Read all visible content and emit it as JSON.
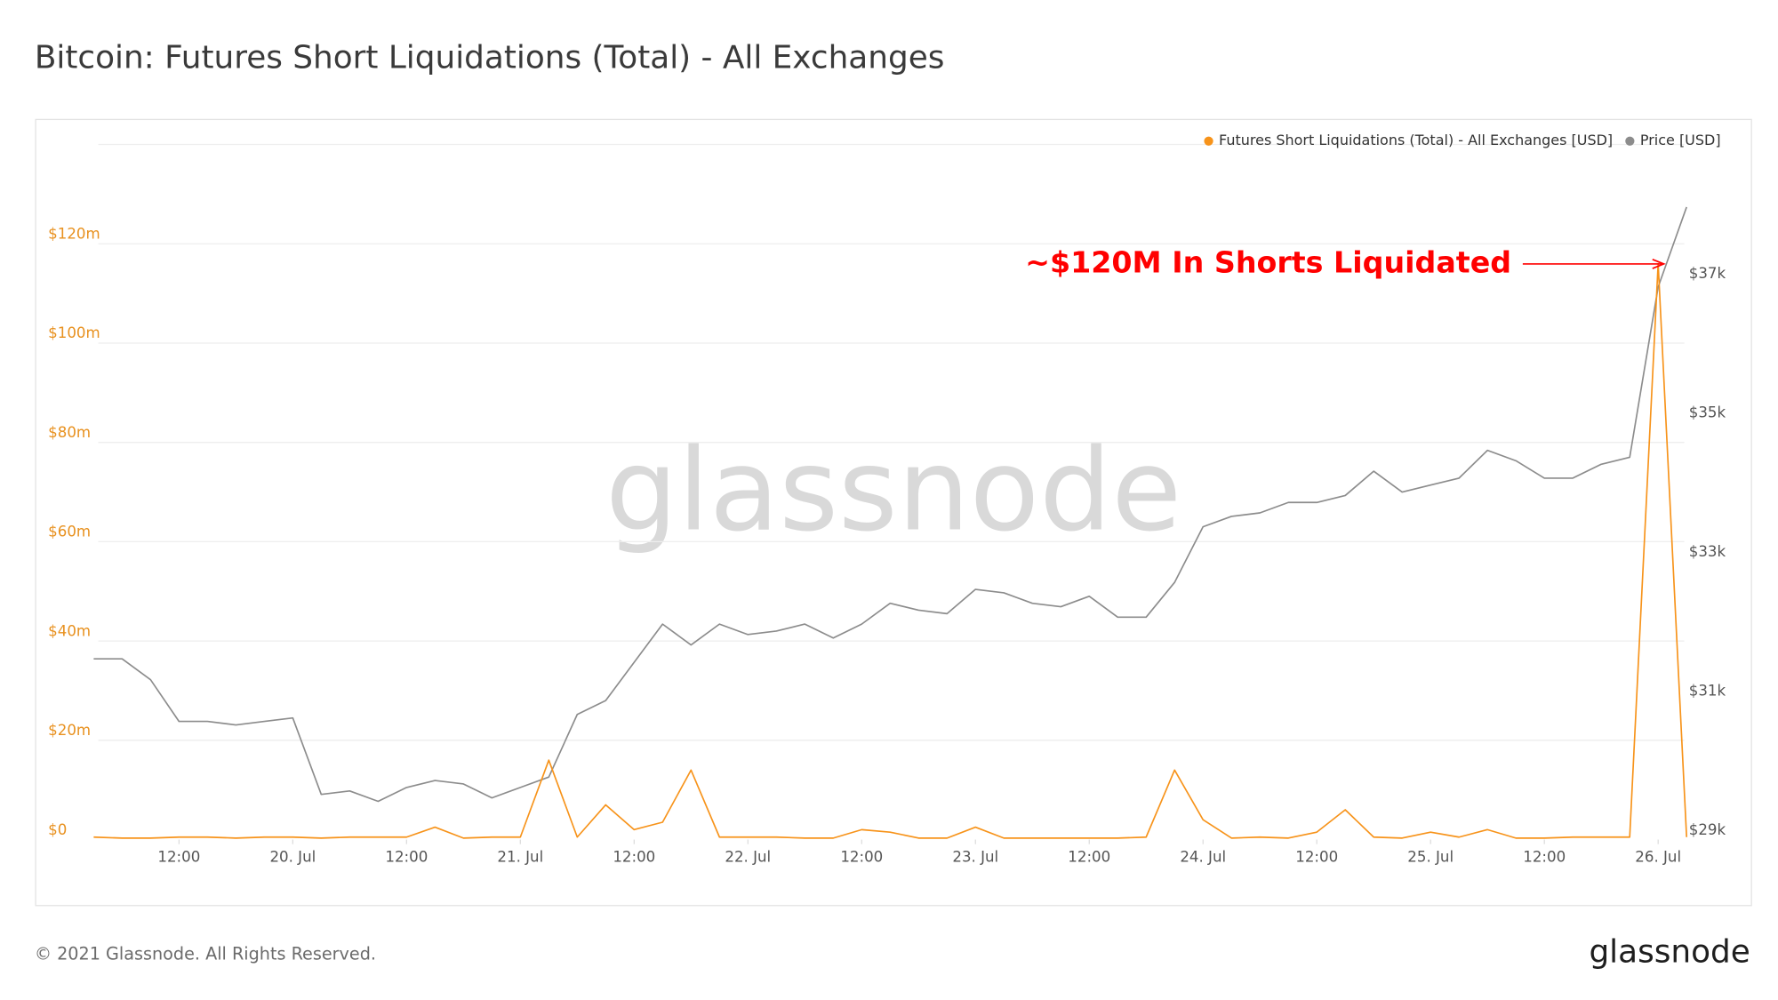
{
  "chart_data": {
    "type": "line",
    "title": "Bitcoin: Futures Short Liquidations (Total) - All Exchanges",
    "watermark": "glassnode",
    "annotation": "~$120M In Shorts Liquidated",
    "annotation_color": "#ff0000",
    "x": [
      "19 Jul 03:00",
      "19 Jul 06:00",
      "19 Jul 09:00",
      "19 Jul 12:00",
      "19 Jul 15:00",
      "19 Jul 18:00",
      "19 Jul 21:00",
      "20 Jul 00:00",
      "20 Jul 03:00",
      "20 Jul 06:00",
      "20 Jul 09:00",
      "20 Jul 12:00",
      "20 Jul 15:00",
      "20 Jul 18:00",
      "20 Jul 21:00",
      "21 Jul 00:00",
      "21 Jul 03:00",
      "21 Jul 06:00",
      "21 Jul 09:00",
      "21 Jul 12:00",
      "21 Jul 15:00",
      "21 Jul 18:00",
      "21 Jul 21:00",
      "22 Jul 00:00",
      "22 Jul 03:00",
      "22 Jul 06:00",
      "22 Jul 09:00",
      "22 Jul 12:00",
      "22 Jul 15:00",
      "22 Jul 18:00",
      "22 Jul 21:00",
      "23 Jul 00:00",
      "23 Jul 03:00",
      "23 Jul 06:00",
      "23 Jul 09:00",
      "23 Jul 12:00",
      "23 Jul 15:00",
      "23 Jul 18:00",
      "23 Jul 21:00",
      "24 Jul 00:00",
      "24 Jul 03:00",
      "24 Jul 06:00",
      "24 Jul 09:00",
      "24 Jul 12:00",
      "24 Jul 15:00",
      "24 Jul 18:00",
      "24 Jul 21:00",
      "25 Jul 00:00",
      "25 Jul 03:00",
      "25 Jul 06:00",
      "25 Jul 09:00",
      "25 Jul 12:00",
      "25 Jul 15:00",
      "25 Jul 18:00",
      "25 Jul 21:00",
      "26 Jul 00:00",
      "26 Jul 03:00"
    ],
    "series": [
      {
        "name": "Futures Short Liquidations (Total) - All Exchanges [USD]",
        "color": "#f7931a",
        "axis": "y",
        "values": [
          0.5,
          0.3,
          0.3,
          0.5,
          0.5,
          0.3,
          0.5,
          0.5,
          0.3,
          0.5,
          0.5,
          0.5,
          2.5,
          0.3,
          0.5,
          0.5,
          16,
          0.5,
          7,
          2,
          3.5,
          14,
          0.5,
          0.5,
          0.5,
          0.3,
          0.3,
          2,
          1.5,
          0.3,
          0.3,
          2.5,
          0.3,
          0.3,
          0.3,
          0.3,
          0.3,
          0.5,
          14,
          4,
          0.3,
          0.5,
          0.3,
          1.5,
          6,
          0.5,
          0.3,
          1.5,
          0.5,
          2,
          0.3,
          0.3,
          0.5,
          0.5,
          0.5,
          116,
          0.5
        ]
      },
      {
        "name": "Price [USD]",
        "color": "#8c8c8c",
        "axis": "y2",
        "values": [
          31.6,
          31.6,
          31.3,
          30.7,
          30.7,
          30.65,
          30.7,
          30.75,
          29.65,
          29.7,
          29.55,
          29.75,
          29.85,
          29.8,
          29.6,
          29.75,
          29.9,
          30.8,
          31.0,
          31.55,
          32.1,
          31.8,
          32.1,
          31.95,
          32.0,
          32.1,
          31.9,
          32.1,
          32.4,
          32.3,
          32.25,
          32.6,
          32.55,
          32.4,
          32.35,
          32.5,
          32.2,
          32.2,
          32.7,
          33.5,
          33.65,
          33.7,
          33.85,
          33.85,
          33.95,
          34.3,
          34.0,
          34.1,
          34.2,
          34.6,
          34.45,
          34.2,
          34.2,
          34.4,
          34.5,
          36.95,
          38.1
        ]
      }
    ],
    "xlim": [
      "19 Jul 03:00",
      "26 Jul 03:00"
    ],
    "xticks": [
      {
        "value": "19 Jul 12:00",
        "label": "12:00"
      },
      {
        "value": "20 Jul 00:00",
        "label": "20. Jul"
      },
      {
        "value": "20 Jul 12:00",
        "label": "12:00"
      },
      {
        "value": "21 Jul 00:00",
        "label": "21. Jul"
      },
      {
        "value": "21 Jul 12:00",
        "label": "12:00"
      },
      {
        "value": "22 Jul 00:00",
        "label": "22. Jul"
      },
      {
        "value": "22 Jul 12:00",
        "label": "12:00"
      },
      {
        "value": "23 Jul 00:00",
        "label": "23. Jul"
      },
      {
        "value": "23 Jul 12:00",
        "label": "12:00"
      },
      {
        "value": "24 Jul 00:00",
        "label": "24. Jul"
      },
      {
        "value": "24 Jul 12:00",
        "label": "12:00"
      },
      {
        "value": "25 Jul 00:00",
        "label": "25. Jul"
      },
      {
        "value": "25 Jul 12:00",
        "label": "12:00"
      },
      {
        "value": "26 Jul 00:00",
        "label": "26. Jul"
      }
    ],
    "ylim": [
      0,
      140
    ],
    "yticks": [
      {
        "value": 0,
        "label": "$0"
      },
      {
        "value": 20,
        "label": "$20m"
      },
      {
        "value": 40,
        "label": "$40m"
      },
      {
        "value": 60,
        "label": "$60m"
      },
      {
        "value": 80,
        "label": "$80m"
      },
      {
        "value": 100,
        "label": "$100m"
      },
      {
        "value": 120,
        "label": "$120m"
      }
    ],
    "y2lim": [
      29,
      39
    ],
    "y2ticks": [
      {
        "value": 29,
        "label": "$29k"
      },
      {
        "value": 31,
        "label": "$31k"
      },
      {
        "value": 33,
        "label": "$33k"
      },
      {
        "value": 35,
        "label": "$35k"
      },
      {
        "value": 37,
        "label": "$37k"
      }
    ],
    "grid": true,
    "legend": "top-right"
  },
  "footer": {
    "copyright": "© 2021 Glassnode. All Rights Reserved.",
    "logo": "glassnode"
  }
}
